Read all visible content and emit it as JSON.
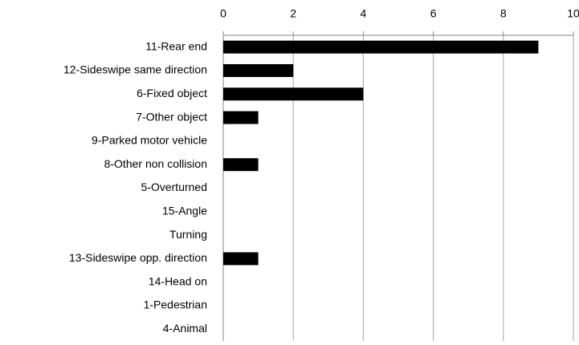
{
  "chart_data": {
    "type": "bar",
    "orientation": "horizontal",
    "categories": [
      "11-Rear end",
      "12-Sideswipe same direction",
      "6-Fixed object",
      "7-Other object",
      "9-Parked motor vehicle",
      "8-Other non collision",
      "5-Overturned",
      "15-Angle",
      "Turning",
      "13-Sideswipe opp. direction",
      "14-Head on",
      "1-Pedestrian",
      "4-Animal"
    ],
    "values": [
      9,
      2,
      4,
      1,
      0,
      1,
      0,
      0,
      0,
      1,
      0,
      0,
      0
    ],
    "color": "#000000",
    "xlim": [
      0,
      10
    ],
    "xticks": [
      0,
      2,
      4,
      6,
      8,
      10
    ],
    "grid": true
  }
}
